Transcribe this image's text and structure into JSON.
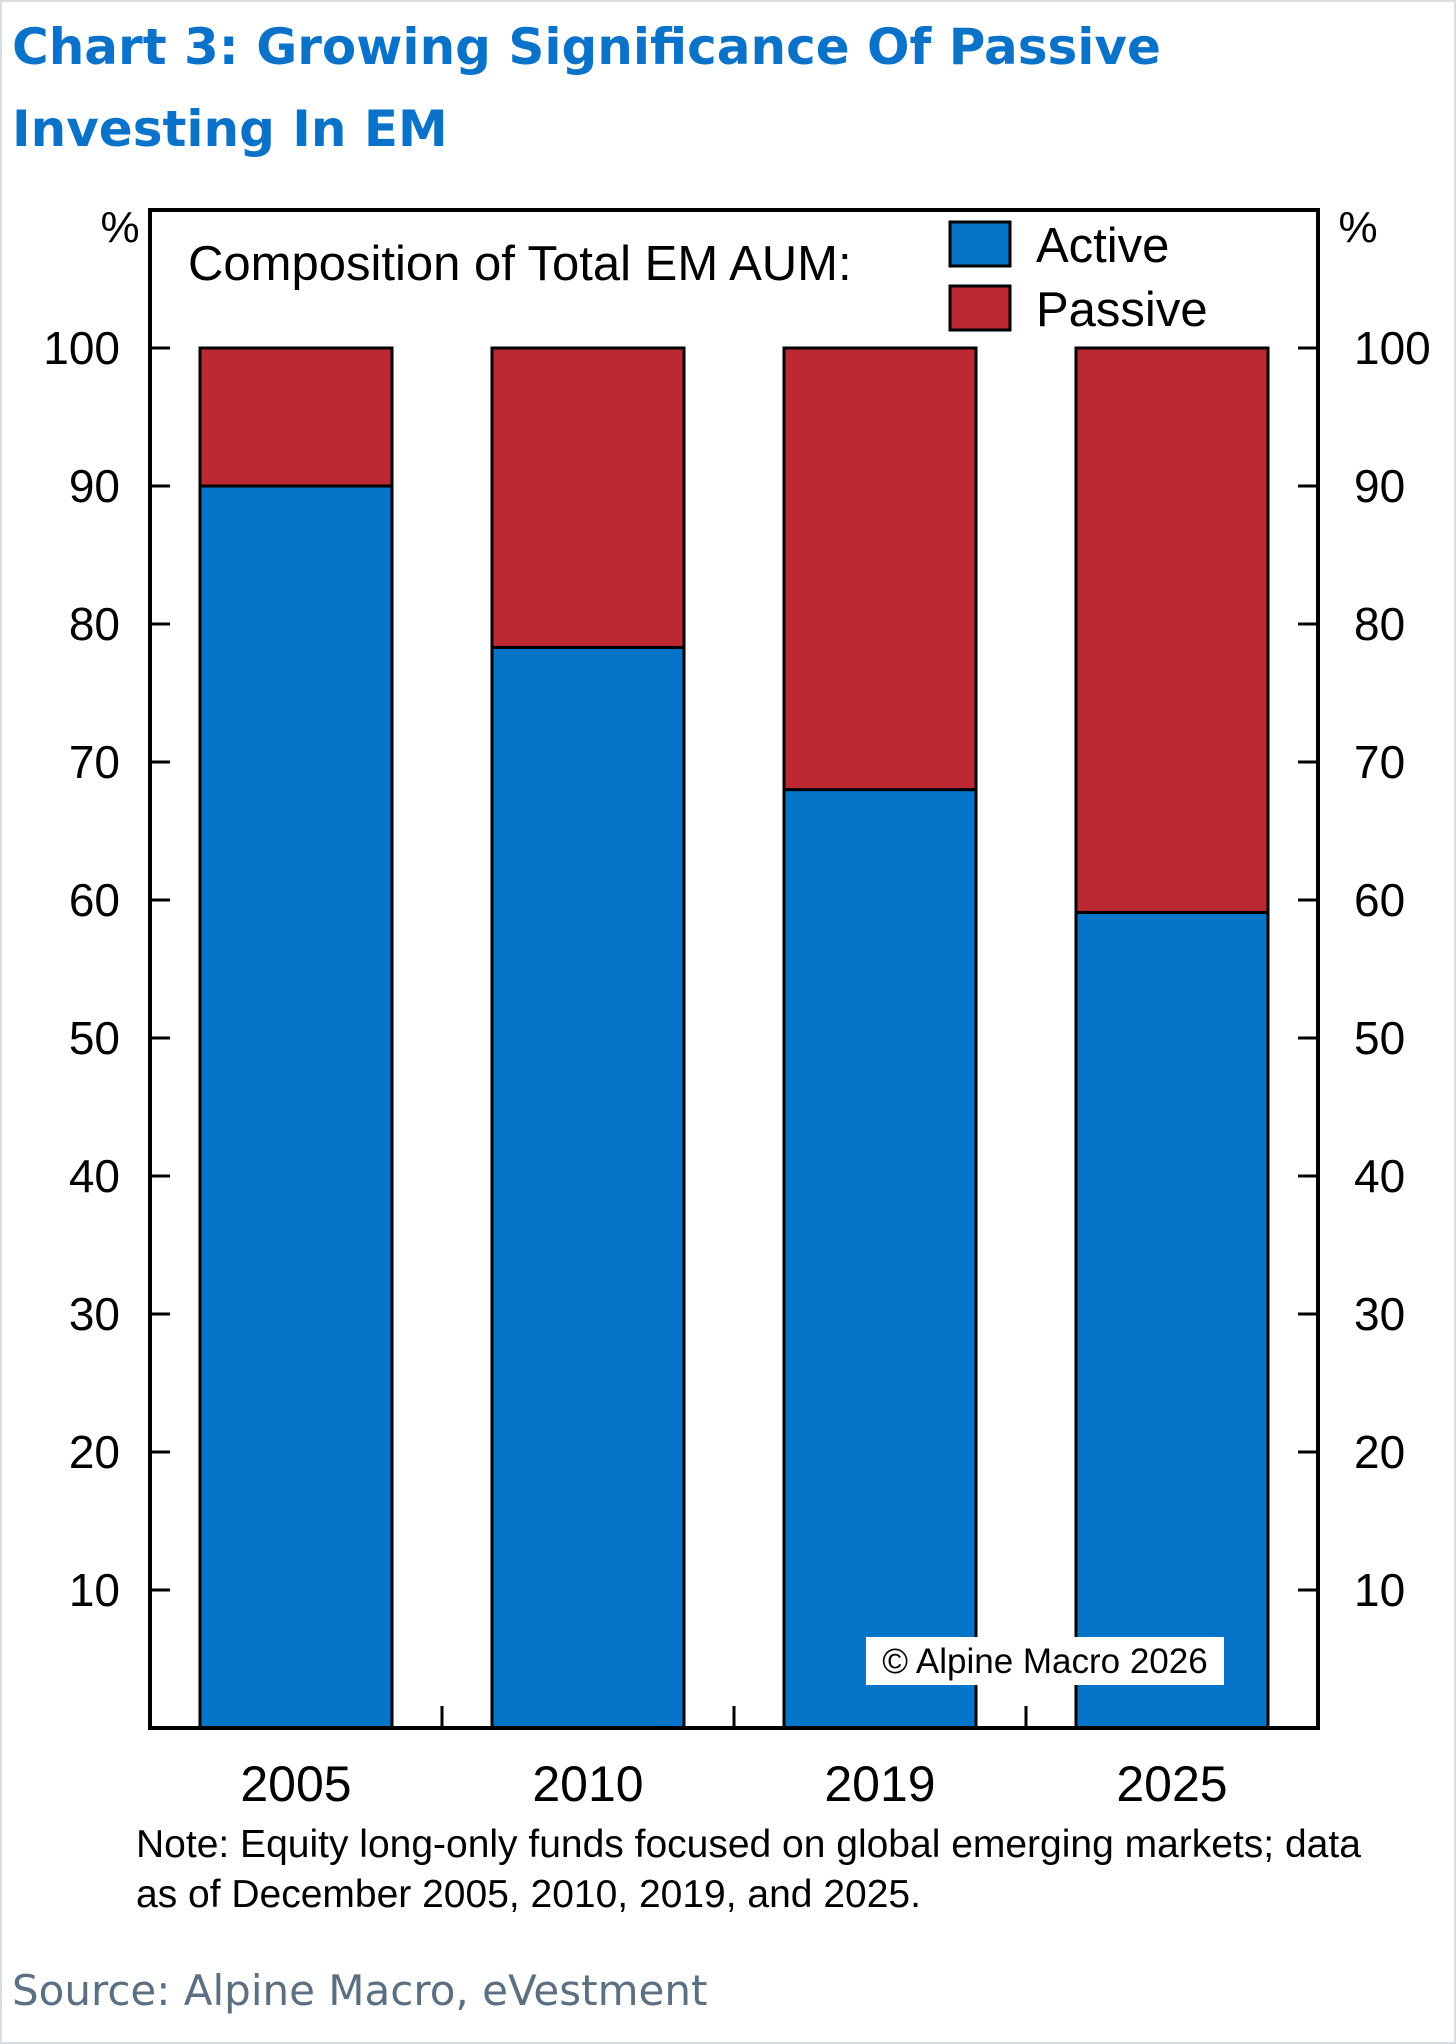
{
  "header": {
    "title": "Chart 3: Growing Significance Of Passive Investing In EM"
  },
  "footer": {
    "note": "Note: Equity long-only funds focused on global emerging markets; data as of December 2005, 2010, 2019, and 2025.",
    "source": "Source: Alpine Macro, eVestment"
  },
  "chart_data": {
    "type": "bar",
    "stacked": true,
    "title": "",
    "inner_title": "Composition of Total EM AUM:",
    "categories": [
      "2005",
      "2010",
      "2019",
      "2025"
    ],
    "series": [
      {
        "name": "Active",
        "values": [
          90,
          78.3,
          68,
          59.1
        ],
        "color": "#0674c9"
      },
      {
        "name": "Passive",
        "values": [
          10,
          21.7,
          32,
          40.9
        ],
        "color": "#bc2932"
      }
    ],
    "ylim": [
      0,
      110
    ],
    "yticks": [
      10,
      20,
      30,
      40,
      50,
      60,
      70,
      80,
      90,
      100
    ],
    "yunit_left": "%",
    "yunit_right": "%",
    "grid": false,
    "legend": "top-right",
    "watermark": "© Alpine Macro 2026"
  }
}
